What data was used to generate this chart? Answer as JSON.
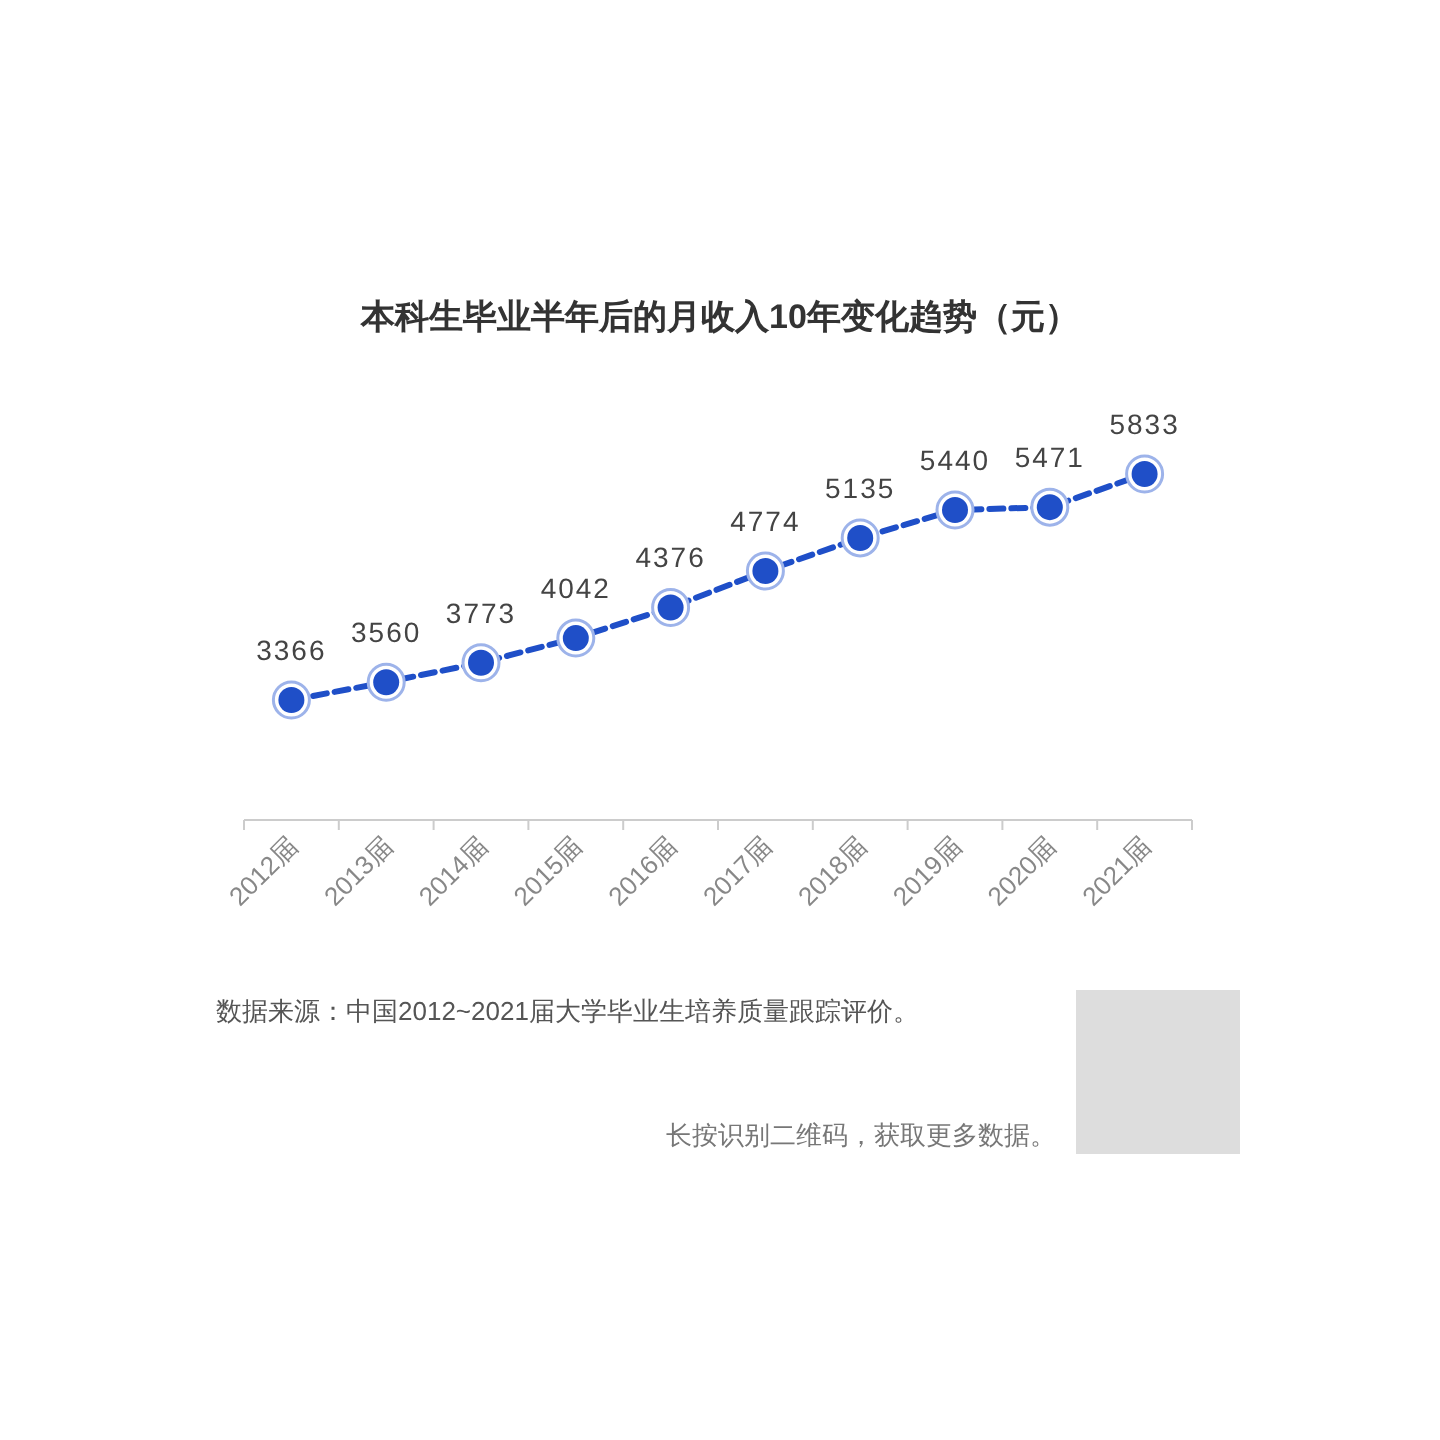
{
  "chart_data": {
    "type": "line",
    "title": "本科生毕业半年后的月收入10年变化趋势（元）",
    "categories": [
      "2012届",
      "2013届",
      "2014届",
      "2015届",
      "2016届",
      "2017届",
      "2018届",
      "2019届",
      "2020届",
      "2021届"
    ],
    "series": [
      {
        "color": "#1f4fc8",
        "values": [
          3366,
          3560,
          3773,
          4042,
          4376,
          4774,
          5135,
          5440,
          5471,
          5833
        ]
      }
    ],
    "tick_labels": "x",
    "data_labels": true,
    "marker": "circle",
    "line_style": "dashed",
    "grid": false,
    "annotations": [
      "数据来源：中国2012~2021届大学毕业生培养质量跟踪评价。",
      "长按识别二维码，获取更多数据。"
    ]
  }
}
